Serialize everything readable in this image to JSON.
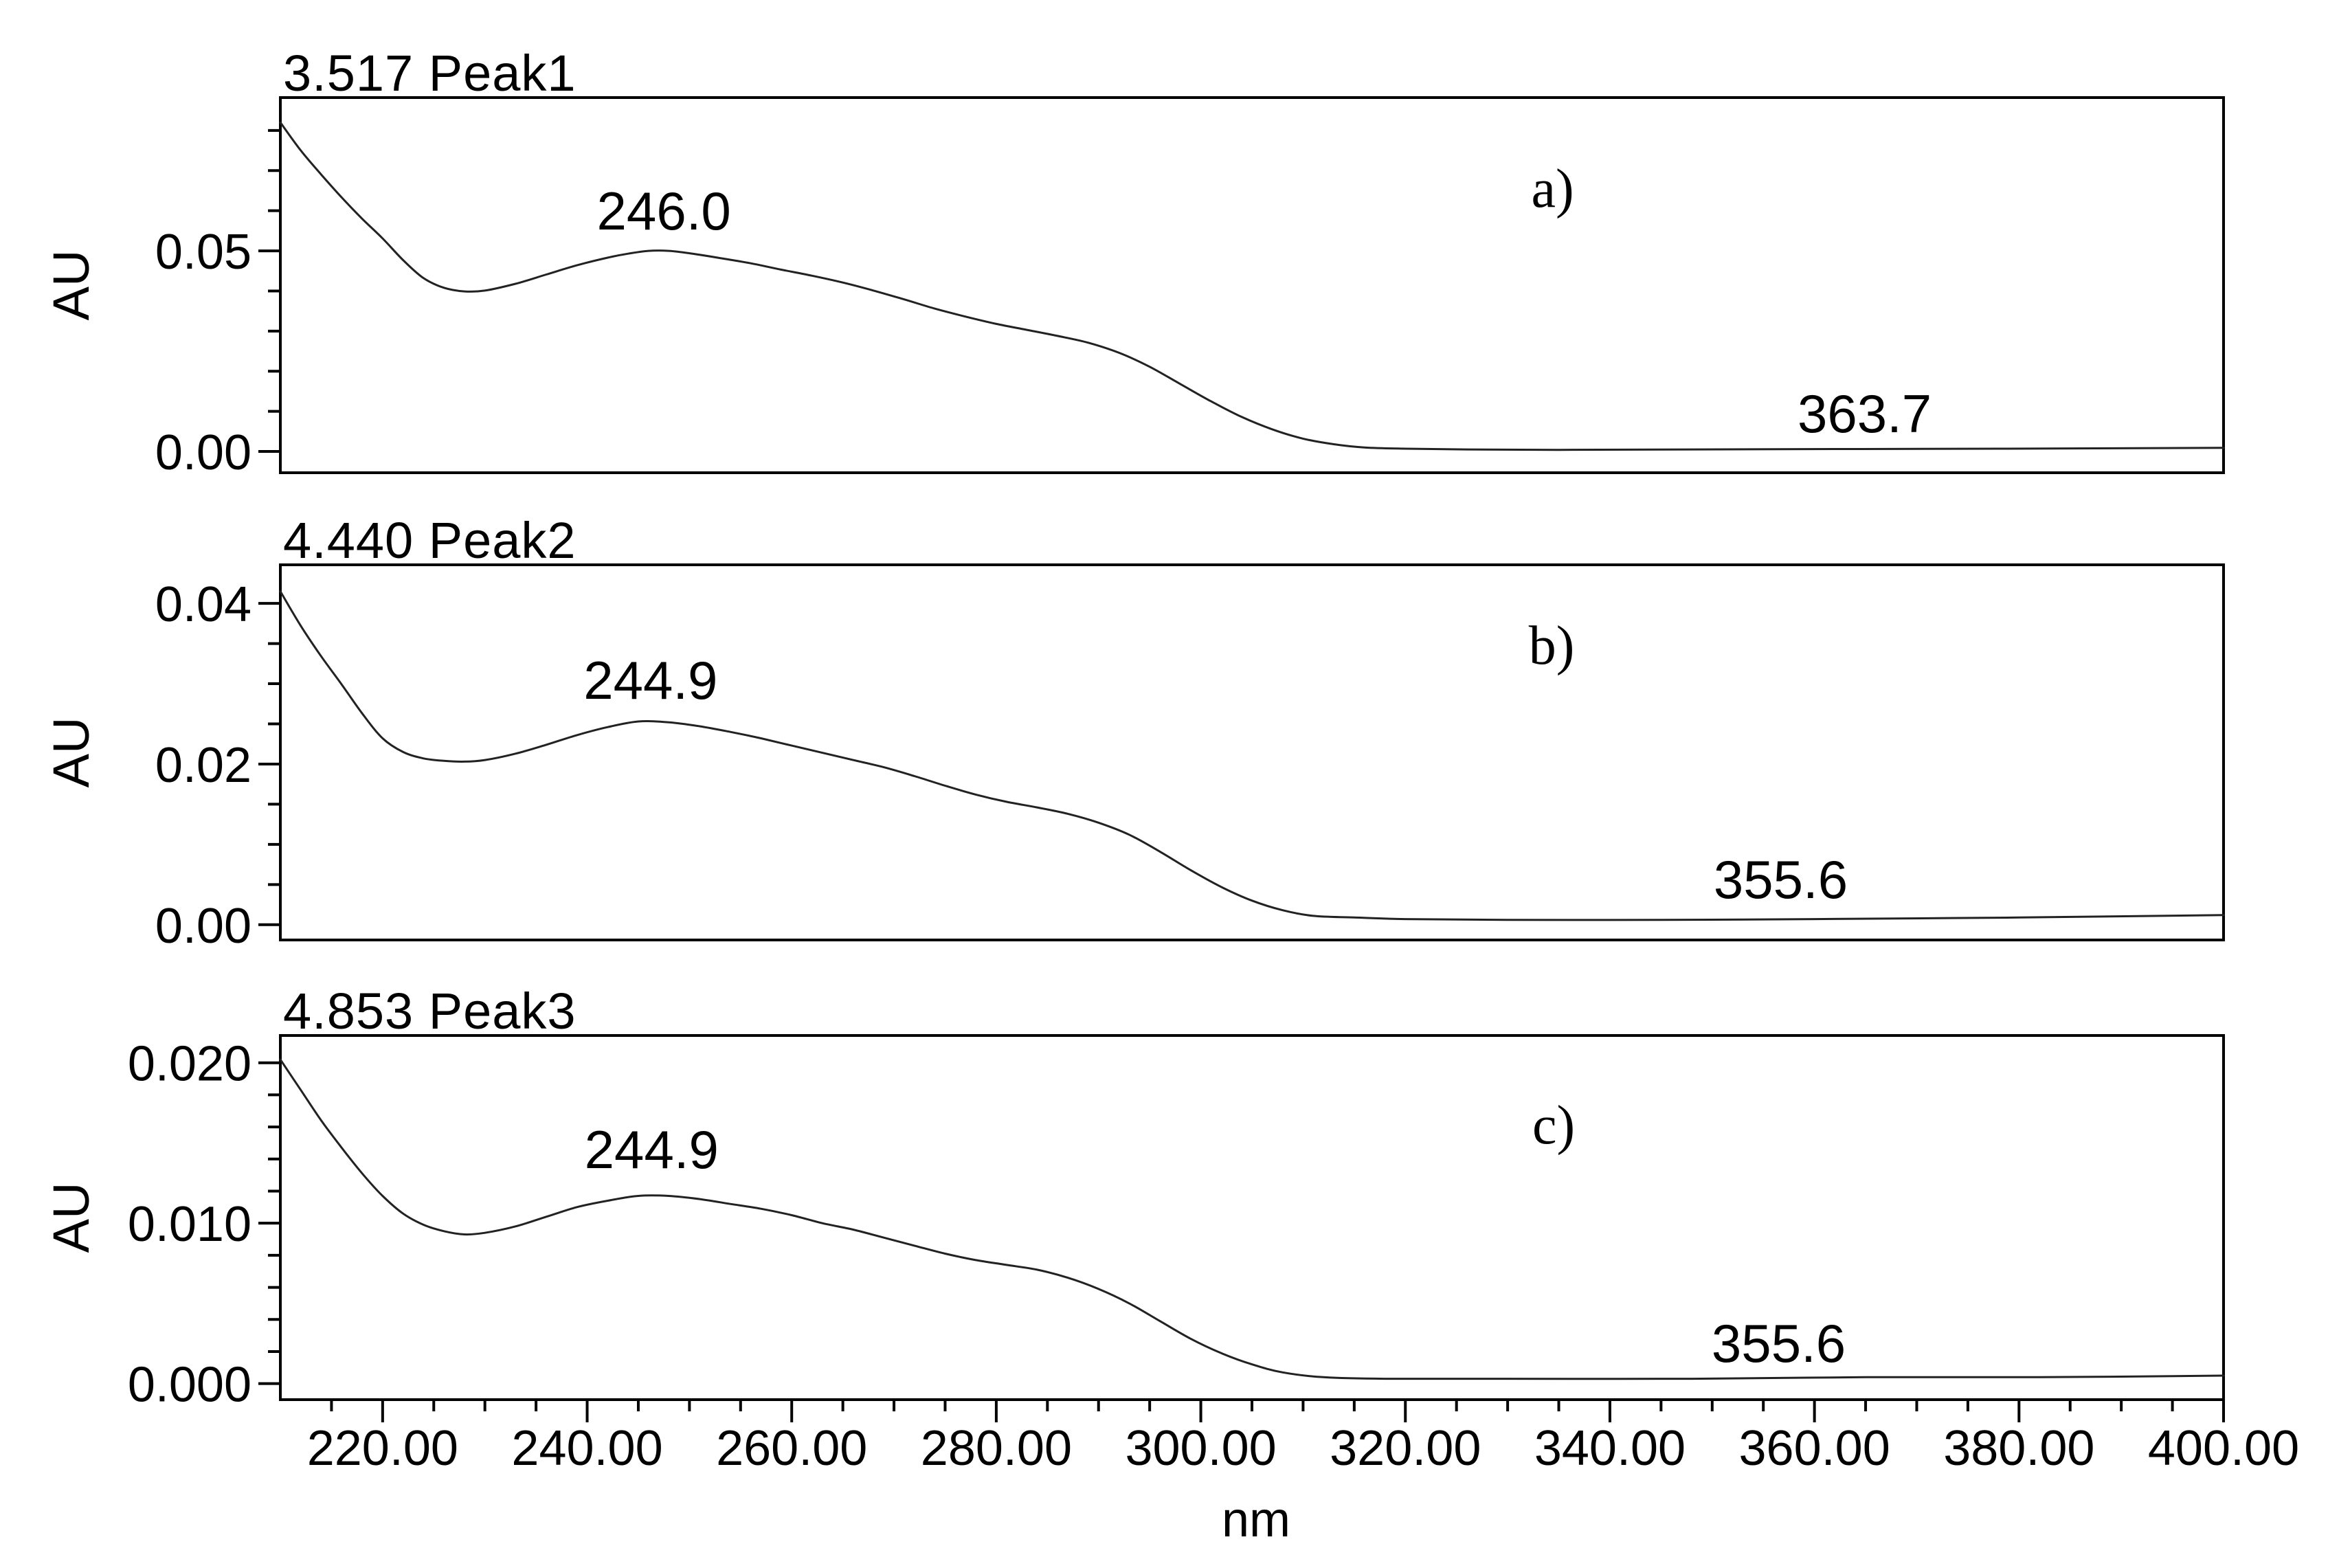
{
  "x_axis": {
    "label": "nm",
    "major_ticks": [
      {
        "value": 220,
        "label": "220.00"
      },
      {
        "value": 240,
        "label": "240.00"
      },
      {
        "value": 260,
        "label": "260.00"
      },
      {
        "value": 280,
        "label": "280.00"
      },
      {
        "value": 300,
        "label": "300.00"
      },
      {
        "value": 320,
        "label": "320.00"
      },
      {
        "value": 340,
        "label": "340.00"
      },
      {
        "value": 360,
        "label": "360.00"
      },
      {
        "value": 380,
        "label": "380.00"
      },
      {
        "value": 400,
        "label": "400.00"
      }
    ],
    "minor_ticks": [
      215,
      225,
      230,
      235,
      245,
      250,
      255,
      265,
      270,
      275,
      285,
      290,
      295,
      305,
      310,
      315,
      325,
      330,
      335,
      345,
      350,
      355,
      365,
      370,
      375,
      385,
      390,
      395
    ]
  },
  "chart_data": [
    {
      "type": "line",
      "title": "3.517 Peak1",
      "ylabel": "AU",
      "xlabel": "nm",
      "xlim": [
        210,
        400
      ],
      "ylim": [
        -0.0053,
        0.0882
      ],
      "grid": false,
      "line_color": "#222222",
      "y_major_ticks": [
        {
          "value": 0.05,
          "label": "0.05"
        },
        {
          "value": 0.0,
          "label": "0.00"
        }
      ],
      "y_minor_ticks": [
        0.01,
        0.02,
        0.03,
        0.04,
        0.06,
        0.07,
        0.08
      ],
      "annotations": {
        "peak": {
          "text": "246.0",
          "x": 247.5,
          "y": 0.06
        },
        "tail": {
          "text": "363.7",
          "x": 364.9,
          "y": 0.0095
        },
        "corner": {
          "text": "a)",
          "x": 334.4,
          "y": 0.0654
        }
      },
      "points": [
        [
          210,
          0.082
        ],
        [
          212,
          0.075
        ],
        [
          214,
          0.069
        ],
        [
          216,
          0.0633
        ],
        [
          218,
          0.058
        ],
        [
          220,
          0.0531
        ],
        [
          222,
          0.0477
        ],
        [
          224,
          0.0432
        ],
        [
          226,
          0.0408
        ],
        [
          228,
          0.0399
        ],
        [
          230,
          0.0401
        ],
        [
          233,
          0.0418
        ],
        [
          236,
          0.0441
        ],
        [
          239,
          0.0464
        ],
        [
          242,
          0.0483
        ],
        [
          244,
          0.0493
        ],
        [
          246,
          0.05
        ],
        [
          248,
          0.05
        ],
        [
          250,
          0.0494
        ],
        [
          253,
          0.0482
        ],
        [
          256,
          0.0469
        ],
        [
          259,
          0.0453
        ],
        [
          262,
          0.0438
        ],
        [
          265,
          0.0421
        ],
        [
          268,
          0.0401
        ],
        [
          271,
          0.0379
        ],
        [
          274,
          0.0356
        ],
        [
          277,
          0.0336
        ],
        [
          280,
          0.0318
        ],
        [
          283,
          0.0303
        ],
        [
          286,
          0.0288
        ],
        [
          289,
          0.0271
        ],
        [
          292,
          0.0246
        ],
        [
          295,
          0.0211
        ],
        [
          298,
          0.0168
        ],
        [
          301,
          0.0125
        ],
        [
          304,
          0.0086
        ],
        [
          307,
          0.0055
        ],
        [
          310,
          0.0032
        ],
        [
          313,
          0.0018
        ],
        [
          316,
          0.001
        ],
        [
          320,
          0.0007
        ],
        [
          326,
          0.0005
        ],
        [
          335,
          0.0004
        ],
        [
          348,
          0.0005
        ],
        [
          362,
          0.0006
        ],
        [
          378,
          0.0007
        ],
        [
          400,
          0.0009
        ]
      ]
    },
    {
      "type": "line",
      "title": "4.440 Peak2",
      "ylabel": "AU",
      "xlabel": "nm",
      "xlim": [
        210,
        400
      ],
      "ylim": [
        -0.0019,
        0.0448
      ],
      "grid": false,
      "line_color": "#222222",
      "y_major_ticks": [
        {
          "value": 0.04,
          "label": "0.04"
        },
        {
          "value": 0.02,
          "label": "0.02"
        },
        {
          "value": 0.0,
          "label": "0.00"
        }
      ],
      "y_minor_ticks": [
        0.005,
        0.01,
        0.015,
        0.025,
        0.03,
        0.035
      ],
      "annotations": {
        "peak": {
          "text": "244.9",
          "x": 246.2,
          "y": 0.0304
        },
        "tail": {
          "text": "355.6",
          "x": 356.7,
          "y": 0.0056
        },
        "corner": {
          "text": "b)",
          "x": 334.3,
          "y": 0.0347
        }
      },
      "points": [
        [
          210,
          0.0415
        ],
        [
          212,
          0.0372
        ],
        [
          214,
          0.0334
        ],
        [
          216,
          0.0299
        ],
        [
          218,
          0.0263
        ],
        [
          220,
          0.0232
        ],
        [
          222,
          0.0215
        ],
        [
          224,
          0.0207
        ],
        [
          226,
          0.0204
        ],
        [
          228,
          0.0203
        ],
        [
          230,
          0.0205
        ],
        [
          233,
          0.0213
        ],
        [
          236,
          0.0224
        ],
        [
          239,
          0.0236
        ],
        [
          242,
          0.0246
        ],
        [
          245,
          0.0253
        ],
        [
          248,
          0.0252
        ],
        [
          251,
          0.0247
        ],
        [
          254,
          0.024
        ],
        [
          257,
          0.0232
        ],
        [
          260,
          0.0223
        ],
        [
          263,
          0.0214
        ],
        [
          266,
          0.0205
        ],
        [
          269,
          0.0196
        ],
        [
          272,
          0.0185
        ],
        [
          275,
          0.0173
        ],
        [
          278,
          0.0162
        ],
        [
          281,
          0.0153
        ],
        [
          284,
          0.0146
        ],
        [
          287,
          0.0138
        ],
        [
          290,
          0.0127
        ],
        [
          293,
          0.0112
        ],
        [
          296,
          0.0091
        ],
        [
          299,
          0.0068
        ],
        [
          302,
          0.0047
        ],
        [
          305,
          0.003
        ],
        [
          308,
          0.0018
        ],
        [
          311,
          0.0011
        ],
        [
          315,
          0.0009
        ],
        [
          320,
          0.0007
        ],
        [
          330,
          0.0006
        ],
        [
          345,
          0.0006
        ],
        [
          360,
          0.0007
        ],
        [
          380,
          0.0009
        ],
        [
          400,
          0.0012
        ]
      ]
    },
    {
      "type": "line",
      "title": "4.853 Peak3",
      "ylabel": "AU",
      "xlabel": "nm",
      "xlim": [
        210,
        400
      ],
      "ylim": [
        -0.001,
        0.0217
      ],
      "grid": false,
      "line_color": "#222222",
      "y_major_ticks": [
        {
          "value": 0.02,
          "label": "0.020"
        },
        {
          "value": 0.01,
          "label": "0.010"
        },
        {
          "value": 0.0,
          "label": "0.000"
        }
      ],
      "y_minor_ticks": [
        0.002,
        0.004,
        0.006,
        0.008,
        0.012,
        0.014,
        0.016,
        0.018
      ],
      "annotations": {
        "peak": {
          "text": "244.9",
          "x": 246.3,
          "y": 0.0146
        },
        "tail": {
          "text": "355.6",
          "x": 356.5,
          "y": 0.0025
        },
        "corner": {
          "text": "c)",
          "x": 334.5,
          "y": 0.0161
        }
      },
      "points": [
        [
          210,
          0.0202
        ],
        [
          212,
          0.0183
        ],
        [
          214,
          0.0164
        ],
        [
          216,
          0.0147
        ],
        [
          218,
          0.0131
        ],
        [
          220,
          0.0117
        ],
        [
          222,
          0.0106
        ],
        [
          224,
          0.0099
        ],
        [
          226,
          0.0095
        ],
        [
          228,
          0.0093
        ],
        [
          230,
          0.0094
        ],
        [
          233,
          0.0098
        ],
        [
          236,
          0.0104
        ],
        [
          239,
          0.011
        ],
        [
          242,
          0.0114
        ],
        [
          245,
          0.0117
        ],
        [
          248,
          0.0117
        ],
        [
          251,
          0.0115
        ],
        [
          254,
          0.0112
        ],
        [
          257,
          0.0109
        ],
        [
          260,
          0.0105
        ],
        [
          263,
          0.01
        ],
        [
          266,
          0.0096
        ],
        [
          269,
          0.0091
        ],
        [
          272,
          0.0086
        ],
        [
          275,
          0.0081
        ],
        [
          278,
          0.0077
        ],
        [
          281,
          0.0074
        ],
        [
          284,
          0.0071
        ],
        [
          287,
          0.0066
        ],
        [
          290,
          0.0059
        ],
        [
          293,
          0.005
        ],
        [
          296,
          0.0039
        ],
        [
          299,
          0.0028
        ],
        [
          302,
          0.0019
        ],
        [
          305,
          0.0012
        ],
        [
          308,
          0.0007
        ],
        [
          312,
          0.0004
        ],
        [
          318,
          0.0003
        ],
        [
          330,
          0.0003
        ],
        [
          348,
          0.0003
        ],
        [
          365,
          0.0004
        ],
        [
          382,
          0.0004
        ],
        [
          400,
          0.0005
        ]
      ]
    }
  ]
}
